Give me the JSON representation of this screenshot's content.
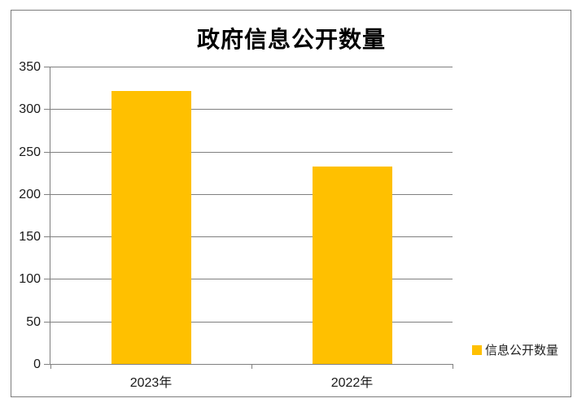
{
  "title": "政府信息公开数量",
  "chart_data": {
    "type": "bar",
    "title": "政府信息公开数量",
    "categories": [
      "2023年",
      "2022年"
    ],
    "series": [
      {
        "name": "信息公开数量",
        "values": [
          321,
          232
        ]
      }
    ],
    "xlabel": "",
    "ylabel": "",
    "ylim": [
      0,
      350
    ],
    "yticks": [
      0,
      50,
      100,
      150,
      200,
      250,
      300,
      350
    ],
    "grid": true,
    "legend": {
      "label": "信息公开数量",
      "position": "bottom-right"
    },
    "bar_color": "#FFC000"
  },
  "colors": {
    "bar": "#FFC000",
    "gridline": "#7f7f7f",
    "axis": "#7f7f7f",
    "border": "#7d7d7d",
    "label_text": "#1a1a1a",
    "title_text": "#000000"
  }
}
